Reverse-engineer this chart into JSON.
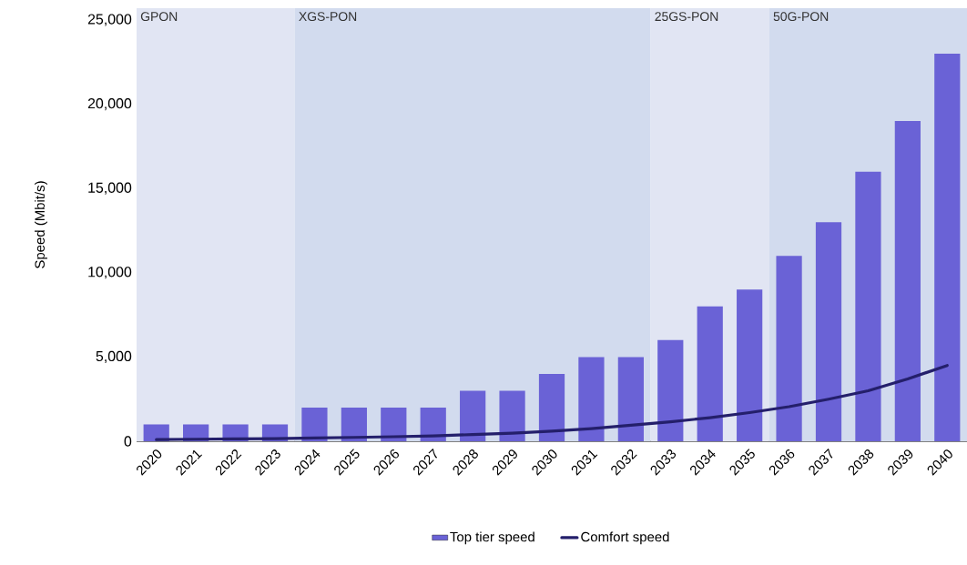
{
  "chart_data": {
    "type": "bar",
    "ylabel": "Speed (Mbit/s)",
    "categories": [
      "2020",
      "2021",
      "2022",
      "2023",
      "2024",
      "2025",
      "2026",
      "2027",
      "2028",
      "2029",
      "2030",
      "2031",
      "2032",
      "2033",
      "2034",
      "2035",
      "2036",
      "2037",
      "2038",
      "2039",
      "2040"
    ],
    "series": [
      {
        "name": "Top tier speed",
        "color": "#6a62d6",
        "values": [
          1000,
          1000,
          1000,
          1000,
          2000,
          2000,
          2000,
          2000,
          3000,
          3000,
          4000,
          5000,
          5000,
          6000,
          8000,
          9000,
          11000,
          13000,
          16000,
          19000,
          23000
        ]
      },
      {
        "name": "Comfort speed",
        "type": "line",
        "color": "#241f6b",
        "line_style": "solid",
        "marker": "none",
        "values": [
          100,
          120,
          140,
          160,
          200,
          230,
          270,
          320,
          400,
          480,
          600,
          750,
          950,
          1150,
          1400,
          1700,
          2050,
          2500,
          3000,
          3700,
          4500
        ]
      }
    ],
    "bands": [
      {
        "axis": "x",
        "from": "2020",
        "to": "2023",
        "label": "GPON",
        "color": "#e1e5f3"
      },
      {
        "axis": "x",
        "from": "2024",
        "to": "2032",
        "label": "XGS-PON",
        "color": "#d2dbee"
      },
      {
        "axis": "x",
        "from": "2033",
        "to": "2035",
        "label": "25GS-PON",
        "color": "#e1e5f3"
      },
      {
        "axis": "x",
        "from": "2036",
        "to": "2040",
        "label": "50G-PON",
        "color": "#d2dbee"
      }
    ],
    "ylim": [
      0,
      25700
    ],
    "yticks": [
      {
        "value": 0,
        "label": "0"
      },
      {
        "value": 5000,
        "label": "5,000"
      },
      {
        "value": 10000,
        "label": "10,000"
      },
      {
        "value": 15000,
        "label": "15,000"
      },
      {
        "value": 20000,
        "label": "20,000"
      },
      {
        "value": 25000,
        "label": "25,000"
      }
    ],
    "grid": false,
    "legend": "bottom"
  }
}
